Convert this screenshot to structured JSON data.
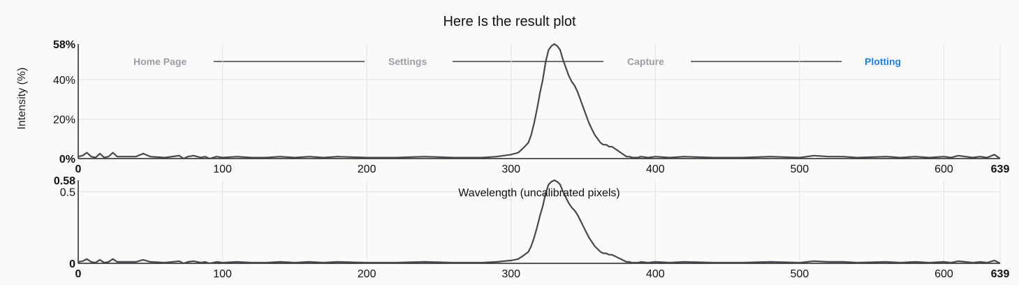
{
  "title": "Here Is the result plot",
  "ylabel": "Intensity (%)",
  "xlabel": "Wavelength (uncalibrated pixels)",
  "steps": [
    {
      "label": "Home Page",
      "active": false
    },
    {
      "label": "Settings",
      "active": false
    },
    {
      "label": "Capture",
      "active": false
    },
    {
      "label": "Plotting",
      "active": true
    }
  ],
  "colors": {
    "line": "#45484e",
    "grid": "#e2e2e2",
    "active_step": "#1e7fe0",
    "inactive_step": "#9a9ea4"
  },
  "chart_data": [
    {
      "type": "line",
      "name": "top",
      "xlim": [
        0,
        639
      ],
      "ylim": [
        0,
        58
      ],
      "x_ticks": [
        0,
        100,
        200,
        300,
        400,
        500,
        600,
        639
      ],
      "x_tick_labels": [
        "0",
        "100",
        "200",
        "300",
        "400",
        "500",
        "600",
        "639"
      ],
      "y_ticks": [
        0,
        20,
        40,
        58
      ],
      "y_tick_labels": [
        "0%",
        "20%",
        "40%",
        "58%"
      ],
      "grid": true,
      "x": [
        0,
        3,
        6,
        9,
        12,
        15,
        18,
        21,
        24,
        27,
        30,
        40,
        45,
        50,
        60,
        70,
        73,
        76,
        80,
        85,
        88,
        91,
        96,
        100,
        110,
        120,
        130,
        140,
        150,
        160,
        170,
        180,
        200,
        220,
        240,
        260,
        280,
        290,
        300,
        305,
        308,
        312,
        314,
        316,
        318,
        320,
        322,
        324,
        326,
        328,
        330,
        332,
        334,
        336,
        338,
        340,
        342,
        344,
        346,
        348,
        350,
        352,
        354,
        356,
        358,
        360,
        362,
        364,
        366,
        368,
        370,
        372,
        374,
        376,
        378,
        380,
        382,
        384,
        386,
        388,
        390,
        395,
        400,
        410,
        420,
        440,
        460,
        480,
        500,
        510,
        520,
        530,
        540,
        560,
        570,
        580,
        590,
        600,
        605,
        610,
        620,
        625,
        630,
        635,
        639
      ],
      "y": [
        1,
        1.5,
        3,
        1,
        0.5,
        2.5,
        0.5,
        1,
        3,
        1,
        1,
        1,
        2.5,
        1,
        0.5,
        1.5,
        0,
        1,
        1.5,
        0.5,
        1,
        0,
        1,
        0.5,
        1,
        0.5,
        0.5,
        1,
        0.5,
        1,
        0.5,
        1,
        0.5,
        0.5,
        1,
        0.5,
        0.5,
        1,
        2,
        3,
        5,
        8,
        12,
        18,
        25,
        33,
        40,
        49,
        55,
        57,
        58,
        57,
        55,
        50,
        46,
        42,
        39,
        37,
        34,
        30,
        26,
        22,
        18,
        15,
        12,
        10,
        8,
        7,
        7,
        6,
        6,
        5,
        4,
        3,
        2,
        1,
        1,
        0.5,
        0.5,
        0.5,
        1,
        0.5,
        1,
        0.5,
        1,
        0.5,
        0.5,
        1,
        0.5,
        1.5,
        1,
        1,
        0.5,
        1,
        0.5,
        1,
        0.5,
        1,
        0.5,
        1.5,
        0.5,
        1,
        0.5,
        2,
        0
      ]
    },
    {
      "type": "line",
      "name": "bottom",
      "xlim": [
        0,
        639
      ],
      "ylim": [
        0,
        0.58
      ],
      "x_ticks": [
        0,
        100,
        200,
        300,
        400,
        500,
        600,
        639
      ],
      "x_tick_labels": [
        "0",
        "100",
        "200",
        "300",
        "400",
        "500",
        "600",
        "639"
      ],
      "y_ticks": [
        0,
        0.5,
        0.58
      ],
      "y_tick_labels": [
        "0",
        "0.5",
        "0.58"
      ],
      "grid": true,
      "x": [
        0,
        3,
        6,
        9,
        12,
        15,
        18,
        21,
        24,
        27,
        30,
        40,
        45,
        50,
        60,
        70,
        73,
        76,
        80,
        85,
        88,
        91,
        96,
        100,
        110,
        120,
        130,
        140,
        150,
        160,
        170,
        180,
        200,
        220,
        240,
        260,
        280,
        290,
        300,
        305,
        308,
        312,
        314,
        316,
        318,
        320,
        322,
        324,
        326,
        328,
        330,
        332,
        334,
        336,
        338,
        340,
        342,
        344,
        346,
        348,
        350,
        352,
        354,
        356,
        358,
        360,
        362,
        364,
        366,
        368,
        370,
        372,
        374,
        376,
        378,
        380,
        382,
        384,
        386,
        388,
        390,
        395,
        400,
        410,
        420,
        440,
        460,
        480,
        500,
        510,
        520,
        530,
        540,
        560,
        570,
        580,
        590,
        600,
        605,
        610,
        620,
        625,
        630,
        635,
        639
      ],
      "y": [
        0.01,
        0.015,
        0.03,
        0.01,
        0.005,
        0.025,
        0.005,
        0.01,
        0.03,
        0.01,
        0.01,
        0.01,
        0.025,
        0.01,
        0.005,
        0.015,
        0,
        0.01,
        0.015,
        0.005,
        0.01,
        0,
        0.01,
        0.005,
        0.01,
        0.005,
        0.005,
        0.01,
        0.005,
        0.01,
        0.005,
        0.01,
        0.005,
        0.005,
        0.01,
        0.005,
        0.005,
        0.01,
        0.02,
        0.03,
        0.05,
        0.08,
        0.12,
        0.18,
        0.25,
        0.33,
        0.4,
        0.49,
        0.55,
        0.57,
        0.58,
        0.57,
        0.55,
        0.5,
        0.46,
        0.42,
        0.39,
        0.37,
        0.34,
        0.3,
        0.26,
        0.22,
        0.18,
        0.15,
        0.12,
        0.1,
        0.08,
        0.07,
        0.07,
        0.06,
        0.06,
        0.05,
        0.04,
        0.03,
        0.02,
        0.01,
        0.01,
        0.005,
        0.005,
        0.005,
        0.01,
        0.005,
        0.01,
        0.005,
        0.01,
        0.005,
        0.005,
        0.01,
        0.005,
        0.015,
        0.01,
        0.01,
        0.005,
        0.01,
        0.005,
        0.01,
        0.005,
        0.01,
        0.005,
        0.015,
        0.005,
        0.01,
        0.005,
        0.02,
        0
      ]
    }
  ]
}
